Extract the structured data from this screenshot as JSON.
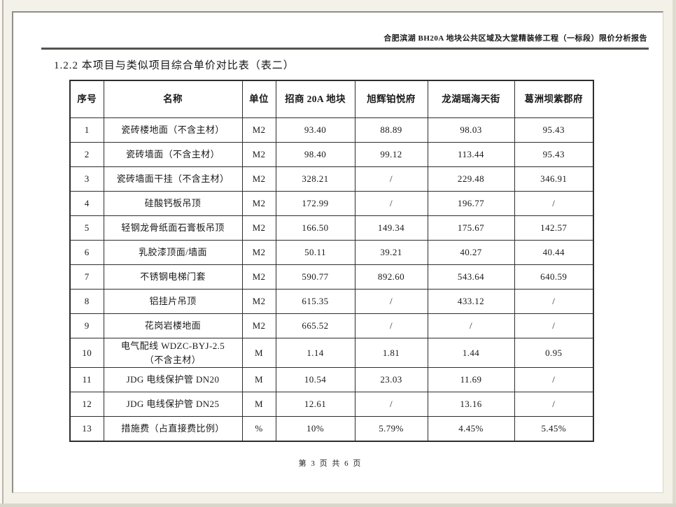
{
  "header": {
    "report_title": "合肥滨湖 BH20A 地块公共区域及大堂精装修工程（一标段）限价分析报告"
  },
  "section_title": "1.2.2 本项目与类似项目综合单价对比表（表二）",
  "table": {
    "columns": [
      "序号",
      "名称",
      "单位",
      "招商 20A 地块",
      "旭辉铂悦府",
      "龙湖瑶海天街",
      "葛洲坝紫郡府"
    ],
    "rows": [
      [
        "1",
        "瓷砖楼地面（不含主材）",
        "M2",
        "93.40",
        "88.89",
        "98.03",
        "95.43"
      ],
      [
        "2",
        "瓷砖墙面（不含主材）",
        "M2",
        "98.40",
        "99.12",
        "113.44",
        "95.43"
      ],
      [
        "3",
        "瓷砖墙面干挂（不含主材）",
        "M2",
        "328.21",
        "/",
        "229.48",
        "346.91"
      ],
      [
        "4",
        "硅酸钙板吊顶",
        "M2",
        "172.99",
        "/",
        "196.77",
        "/"
      ],
      [
        "5",
        "轻钢龙骨纸面石膏板吊顶",
        "M2",
        "166.50",
        "149.34",
        "175.67",
        "142.57"
      ],
      [
        "6",
        "乳胶漆顶面/墙面",
        "M2",
        "50.11",
        "39.21",
        "40.27",
        "40.44"
      ],
      [
        "7",
        "不锈钢电梯门套",
        "M2",
        "590.77",
        "892.60",
        "543.64",
        "640.59"
      ],
      [
        "8",
        "铝挂片吊顶",
        "M2",
        "615.35",
        "/",
        "433.12",
        "/"
      ],
      [
        "9",
        "花岗岩楼地面",
        "M2",
        "665.52",
        "/",
        "/",
        "/"
      ],
      [
        "10",
        "电气配线 WDZC-BYJ-2.5\n（不含主材）",
        "M",
        "1.14",
        "1.81",
        "1.44",
        "0.95"
      ],
      [
        "11",
        "JDG 电线保护管 DN20",
        "M",
        "10.54",
        "23.03",
        "11.69",
        "/"
      ],
      [
        "12",
        "JDG 电线保护管 DN25",
        "M",
        "12.61",
        "/",
        "13.16",
        "/"
      ],
      [
        "13",
        "措施费（占直接费比例）",
        "%",
        "10%",
        "5.79%",
        "4.45%",
        "5.45%"
      ]
    ]
  },
  "footer": {
    "page_info": "第 3 页 共 6 页"
  }
}
